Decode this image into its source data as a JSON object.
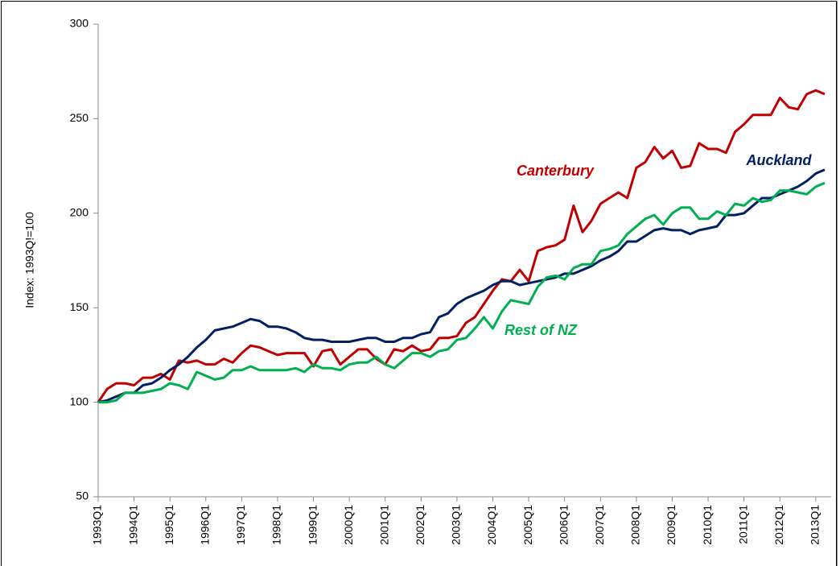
{
  "chart_data": {
    "type": "line",
    "y_label": "Index: 1993Q!=100",
    "categories": [
      "1993Q1",
      null,
      null,
      null,
      "1994Q1",
      null,
      null,
      null,
      "1995Q1",
      null,
      null,
      null,
      "1996Q1",
      null,
      null,
      null,
      "1997Q1",
      null,
      null,
      null,
      "1998Q1",
      null,
      null,
      null,
      "1999Q1",
      null,
      null,
      null,
      "2000Q1",
      null,
      null,
      null,
      "2001Q1",
      null,
      null,
      null,
      "2002Q1",
      null,
      null,
      null,
      "2003Q1",
      null,
      null,
      null,
      "2004Q1",
      null,
      null,
      null,
      "2005Q1",
      null,
      null,
      null,
      "2006Q1",
      null,
      null,
      null,
      "2007Q1",
      null,
      null,
      null,
      "2008Q1",
      null,
      null,
      null,
      "2009Q1",
      null,
      null,
      null,
      "2010Q1",
      null,
      null,
      null,
      "2011Q1",
      null,
      null,
      null,
      "2012Q1",
      null,
      null,
      null,
      "2013Q1",
      null
    ],
    "series": [
      {
        "name": "Canterbury",
        "color": "#c00000",
        "values": [
          100,
          107,
          110,
          110,
          109,
          113,
          113,
          115,
          112,
          122,
          121,
          122,
          120,
          120,
          123,
          121,
          126,
          130,
          129,
          127,
          125,
          126,
          126,
          126,
          119,
          127,
          128,
          120,
          124,
          128,
          128,
          123,
          120,
          128,
          127,
          130,
          127,
          128,
          134,
          134,
          135,
          142,
          145,
          152,
          159,
          165,
          164,
          170,
          164,
          180,
          182,
          183,
          186,
          204,
          190,
          196,
          205,
          208,
          211,
          208,
          224,
          227,
          235,
          229,
          233,
          224,
          225,
          237,
          234,
          234,
          232,
          243,
          247,
          252,
          252,
          252,
          261,
          256,
          255,
          263,
          265,
          263
        ]
      },
      {
        "name": "Auckland",
        "color": "#002060",
        "values": [
          100,
          101,
          103,
          105,
          105,
          109,
          110,
          113,
          117,
          120,
          124,
          129,
          133,
          138,
          139,
          140,
          142,
          144,
          143,
          140,
          140,
          139,
          137,
          134,
          133,
          133,
          132,
          132,
          132,
          133,
          134,
          134,
          132,
          132,
          134,
          134,
          136,
          137,
          145,
          147,
          152,
          155,
          157,
          159,
          162,
          164,
          164,
          162,
          163,
          164,
          165,
          166,
          168,
          168,
          170,
          172,
          175,
          177,
          180,
          185,
          185,
          188,
          191,
          192,
          191,
          191,
          189,
          191,
          192,
          193,
          199,
          199,
          200,
          204,
          208,
          208,
          210,
          212,
          214,
          217,
          221,
          223
        ]
      },
      {
        "name": "Rest of NZ",
        "color": "#00b050",
        "values": [
          100,
          100,
          101,
          105,
          105,
          105,
          106,
          107,
          110,
          109,
          107,
          116,
          114,
          112,
          113,
          117,
          117,
          119,
          117,
          117,
          117,
          117,
          118,
          116,
          120,
          118,
          118,
          117,
          120,
          121,
          121,
          124,
          120,
          118,
          122,
          126,
          126,
          124,
          127,
          128,
          133,
          134,
          139,
          145,
          139,
          148,
          154,
          153,
          152,
          161,
          166,
          167,
          165,
          171,
          173,
          173,
          180,
          181,
          183,
          189,
          193,
          197,
          199,
          194,
          200,
          203,
          203,
          197,
          197,
          201,
          199,
          205,
          204,
          208,
          206,
          207,
          212,
          212,
          211,
          210,
          214,
          216
        ]
      }
    ],
    "ylim": [
      50,
      300
    ],
    "yticks": [
      50,
      100,
      150,
      200,
      250,
      300
    ],
    "grid": false
  }
}
